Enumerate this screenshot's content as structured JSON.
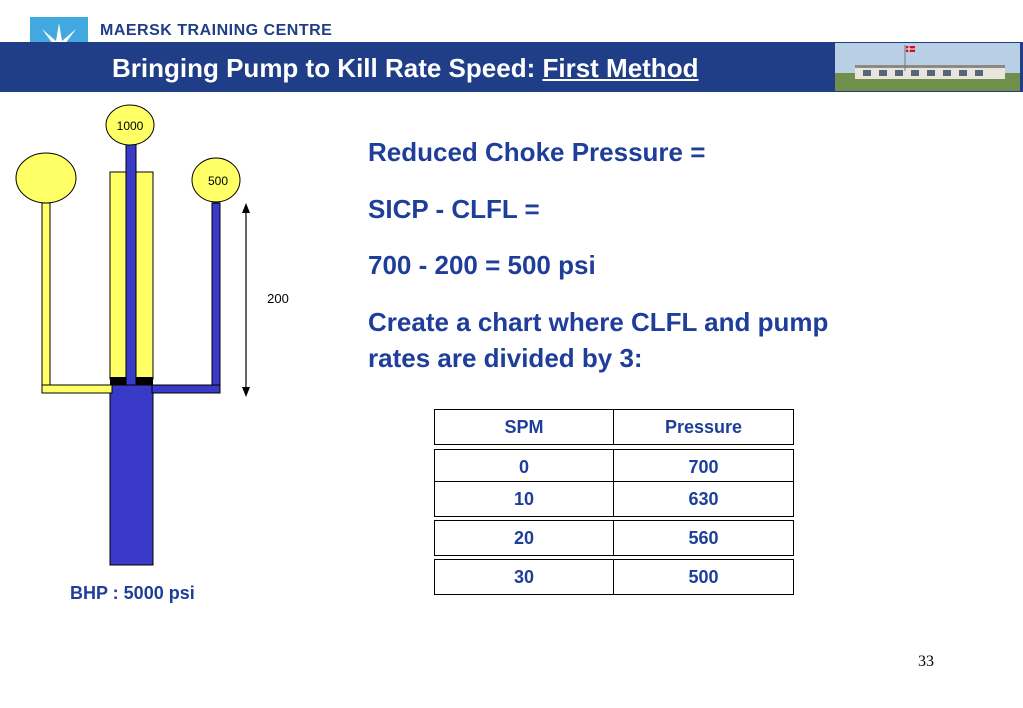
{
  "header": {
    "brand": "MAERSK TRAINING CENTRE",
    "title_prefix": "Bringing Pump to Kill Rate Speed: ",
    "title_method": "First Method"
  },
  "diagram": {
    "gauge_drillpipe": "1000",
    "gauge_casing": "500",
    "dimension_label": "200",
    "bhp_label": "BHP : 5000 psi"
  },
  "body": {
    "line1": "Reduced Choke Pressure =",
    "line2": "SICP - CLFL =",
    "line3": "700 - 200 = 500 psi",
    "line4a": "Create a chart where CLFL  and pump",
    "line4b": "rates are divided by 3:"
  },
  "table": {
    "headers": [
      "SPM",
      "Pressure"
    ],
    "rows": [
      [
        "0",
        "700"
      ],
      [
        "10",
        "630"
      ],
      [
        "20",
        "560"
      ],
      [
        "30",
        "500"
      ]
    ]
  },
  "footer": {
    "page_number": "33"
  },
  "colors": {
    "navy": "#1f3e87",
    "text_blue": "#1f3e9a",
    "logo_blue": "#41a9e0",
    "fluid_yellow": "#ffff66",
    "mud_blue": "#3a3ac8"
  }
}
